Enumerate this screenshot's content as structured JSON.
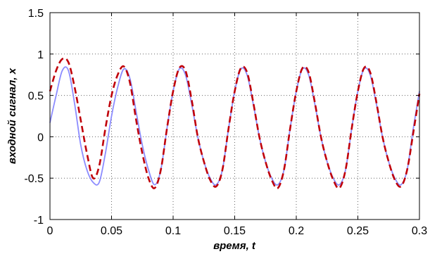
{
  "chart_data": {
    "type": "line",
    "title": "",
    "xlabel": "время, t",
    "ylabel": "входной сигнал, x",
    "xlim": [
      0,
      0.3
    ],
    "ylim": [
      -1,
      1.5
    ],
    "xticks": [
      0,
      0.05,
      0.1,
      0.15,
      0.2,
      0.25,
      0.3
    ],
    "yticks": [
      -1,
      -0.5,
      0,
      0.5,
      1,
      1.5
    ],
    "xtick_labels": [
      "0",
      "0.05",
      "0.1",
      "0.15",
      "0.2",
      "0.25",
      "0.3"
    ],
    "ytick_labels": [
      "-1",
      "-0.5",
      "0",
      "0.5",
      "1",
      "1.5"
    ],
    "grid": true,
    "legend": "none",
    "x": [
      0,
      0.005,
      0.01,
      0.015,
      0.02,
      0.025,
      0.03,
      0.035,
      0.04,
      0.045,
      0.05,
      0.055,
      0.06,
      0.065,
      0.07,
      0.075,
      0.08,
      0.085,
      0.09,
      0.095,
      0.1,
      0.105,
      0.11,
      0.115,
      0.12,
      0.125,
      0.13,
      0.135,
      0.14,
      0.145,
      0.15,
      0.155,
      0.16,
      0.165,
      0.17,
      0.175,
      0.18,
      0.185,
      0.19,
      0.195,
      0.2,
      0.205,
      0.21,
      0.215,
      0.22,
      0.225,
      0.23,
      0.235,
      0.24,
      0.245,
      0.25,
      0.255,
      0.26,
      0.265,
      0.27,
      0.275,
      0.28,
      0.285,
      0.29,
      0.295,
      0.3
    ],
    "series": [
      {
        "color": "#8c8cff",
        "style": "solid",
        "values": [
          0.17,
          0.5,
          0.8,
          0.8,
          0.4,
          -0.1,
          -0.4,
          -0.55,
          -0.55,
          -0.2,
          0.25,
          0.6,
          0.82,
          0.7,
          0.3,
          -0.1,
          -0.4,
          -0.58,
          -0.4,
          0.1,
          0.55,
          0.82,
          0.75,
          0.4,
          0.0,
          -0.3,
          -0.5,
          -0.58,
          -0.4,
          0.1,
          0.55,
          0.82,
          0.75,
          0.4,
          0.0,
          -0.3,
          -0.5,
          -0.58,
          -0.4,
          0.1,
          0.55,
          0.82,
          0.75,
          0.4,
          0.0,
          -0.3,
          -0.5,
          -0.58,
          -0.4,
          0.1,
          0.55,
          0.82,
          0.75,
          0.4,
          0.0,
          -0.3,
          -0.5,
          -0.58,
          -0.4,
          0.1,
          0.55
        ]
      },
      {
        "color": "#c0000a",
        "style": "dashed",
        "values": [
          0.55,
          0.8,
          0.94,
          0.9,
          0.6,
          0.2,
          -0.2,
          -0.5,
          -0.35,
          0.1,
          0.5,
          0.75,
          0.85,
          0.65,
          0.2,
          -0.2,
          -0.5,
          -0.62,
          -0.4,
          0.1,
          0.55,
          0.83,
          0.8,
          0.45,
          0.0,
          -0.3,
          -0.52,
          -0.6,
          -0.4,
          0.1,
          0.55,
          0.83,
          0.78,
          0.42,
          0.0,
          -0.3,
          -0.52,
          -0.62,
          -0.4,
          0.1,
          0.55,
          0.83,
          0.78,
          0.42,
          0.0,
          -0.3,
          -0.52,
          -0.62,
          -0.4,
          0.1,
          0.55,
          0.83,
          0.78,
          0.42,
          0.0,
          -0.3,
          -0.52,
          -0.6,
          -0.4,
          0.05,
          0.52
        ]
      }
    ]
  }
}
